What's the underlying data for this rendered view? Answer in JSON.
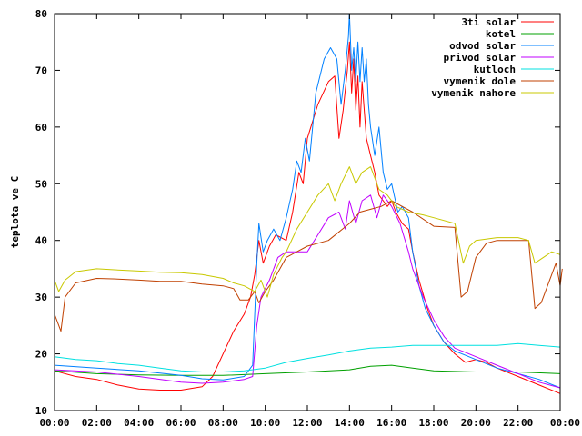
{
  "chart_data": {
    "type": "line",
    "title": "",
    "xlabel": "",
    "ylabel": "teplota ve C",
    "xlim": [
      "00:00",
      "24:00"
    ],
    "ylim": [
      10,
      80
    ],
    "grid": false,
    "legend_position": "top-right",
    "x_ticks": [
      "00:00",
      "02:00",
      "04:00",
      "06:00",
      "08:00",
      "10:00",
      "12:00",
      "14:00",
      "16:00",
      "18:00",
      "20:00",
      "22:00",
      "00:00"
    ],
    "y_ticks": [
      10,
      20,
      30,
      40,
      50,
      60,
      70,
      80
    ],
    "series": [
      {
        "name": "3ti solar",
        "color": "#ff0000",
        "points": [
          [
            0,
            17
          ],
          [
            1,
            16
          ],
          [
            2,
            15.5
          ],
          [
            3,
            14.5
          ],
          [
            4,
            13.8
          ],
          [
            5,
            13.6
          ],
          [
            6,
            13.6
          ],
          [
            7,
            14.2
          ],
          [
            7.5,
            16
          ],
          [
            8,
            20
          ],
          [
            8.5,
            24
          ],
          [
            9,
            27
          ],
          [
            9.3,
            30
          ],
          [
            9.5,
            34
          ],
          [
            9.7,
            40
          ],
          [
            9.9,
            36
          ],
          [
            10.2,
            39
          ],
          [
            10.5,
            41
          ],
          [
            11,
            40
          ],
          [
            11.3,
            45
          ],
          [
            11.6,
            52
          ],
          [
            11.8,
            50
          ],
          [
            12,
            58
          ],
          [
            12.5,
            64
          ],
          [
            13,
            68
          ],
          [
            13.3,
            69
          ],
          [
            13.5,
            58
          ],
          [
            13.7,
            63
          ],
          [
            13.9,
            70
          ],
          [
            14,
            75
          ],
          [
            14.1,
            66
          ],
          [
            14.2,
            72
          ],
          [
            14.3,
            63
          ],
          [
            14.4,
            69
          ],
          [
            14.5,
            60
          ],
          [
            14.6,
            68
          ],
          [
            14.8,
            58
          ],
          [
            15,
            55
          ],
          [
            15.2,
            52
          ],
          [
            15.4,
            48
          ],
          [
            15.6,
            47
          ],
          [
            15.8,
            46
          ],
          [
            16,
            47
          ],
          [
            16.2,
            45
          ],
          [
            16.5,
            43
          ],
          [
            16.8,
            42
          ],
          [
            17,
            38
          ],
          [
            17.3,
            33
          ],
          [
            17.7,
            28
          ],
          [
            18,
            25
          ],
          [
            18.5,
            22
          ],
          [
            19,
            20
          ],
          [
            19.5,
            18.5
          ],
          [
            20,
            19
          ],
          [
            20.5,
            18.5
          ],
          [
            21,
            17.5
          ],
          [
            22,
            16
          ],
          [
            23,
            14.5
          ],
          [
            24,
            13
          ]
        ]
      },
      {
        "name": "kotel",
        "color": "#00a000",
        "points": [
          [
            0,
            17
          ],
          [
            2,
            16.5
          ],
          [
            4,
            16.3
          ],
          [
            6,
            16.2
          ],
          [
            8,
            16.2
          ],
          [
            10,
            16.5
          ],
          [
            12,
            16.8
          ],
          [
            14,
            17.2
          ],
          [
            15,
            17.8
          ],
          [
            16,
            18
          ],
          [
            17,
            17.5
          ],
          [
            18,
            17
          ],
          [
            20,
            16.8
          ],
          [
            22,
            16.8
          ],
          [
            24,
            16.5
          ]
        ]
      },
      {
        "name": "odvod solar",
        "color": "#0080ff",
        "points": [
          [
            0,
            18
          ],
          [
            2,
            17.5
          ],
          [
            4,
            17
          ],
          [
            6,
            16.2
          ],
          [
            7,
            15.6
          ],
          [
            8,
            15.4
          ],
          [
            9,
            16
          ],
          [
            9.4,
            18
          ],
          [
            9.6,
            36
          ],
          [
            9.7,
            43
          ],
          [
            9.9,
            38
          ],
          [
            10.1,
            40
          ],
          [
            10.4,
            42
          ],
          [
            10.7,
            40
          ],
          [
            11,
            44
          ],
          [
            11.3,
            49
          ],
          [
            11.5,
            54
          ],
          [
            11.7,
            52
          ],
          [
            11.9,
            58
          ],
          [
            12.1,
            54
          ],
          [
            12.4,
            66
          ],
          [
            12.8,
            72
          ],
          [
            13.1,
            74
          ],
          [
            13.4,
            72
          ],
          [
            13.6,
            64
          ],
          [
            13.8,
            70
          ],
          [
            13.95,
            76
          ],
          [
            14,
            80
          ],
          [
            14.1,
            70
          ],
          [
            14.2,
            74
          ],
          [
            14.3,
            68
          ],
          [
            14.4,
            75
          ],
          [
            14.5,
            68
          ],
          [
            14.6,
            74
          ],
          [
            14.7,
            68
          ],
          [
            14.8,
            72
          ],
          [
            14.9,
            64
          ],
          [
            15,
            60
          ],
          [
            15.2,
            55
          ],
          [
            15.4,
            60
          ],
          [
            15.6,
            52
          ],
          [
            15.8,
            49
          ],
          [
            16,
            50
          ],
          [
            16.3,
            45
          ],
          [
            16.5,
            46
          ],
          [
            16.8,
            44
          ],
          [
            17,
            38
          ],
          [
            17.3,
            32
          ],
          [
            17.6,
            28
          ],
          [
            18,
            25
          ],
          [
            18.5,
            22
          ],
          [
            19,
            20.5
          ],
          [
            20,
            19
          ],
          [
            21,
            17.5
          ],
          [
            22,
            16.5
          ],
          [
            23,
            15.5
          ],
          [
            24,
            14
          ]
        ]
      },
      {
        "name": "privod solar",
        "color": "#c000ff",
        "points": [
          [
            0,
            17.2
          ],
          [
            2,
            16.8
          ],
          [
            4,
            16
          ],
          [
            6,
            15
          ],
          [
            7,
            14.8
          ],
          [
            8,
            15
          ],
          [
            9,
            15.5
          ],
          [
            9.4,
            16
          ],
          [
            9.6,
            25
          ],
          [
            9.8,
            30
          ],
          [
            10.2,
            33
          ],
          [
            10.6,
            37
          ],
          [
            11,
            38
          ],
          [
            11.5,
            38
          ],
          [
            12,
            38
          ],
          [
            12.5,
            41
          ],
          [
            13,
            44
          ],
          [
            13.5,
            45
          ],
          [
            13.8,
            42
          ],
          [
            14,
            47
          ],
          [
            14.3,
            43
          ],
          [
            14.6,
            47
          ],
          [
            15,
            48
          ],
          [
            15.3,
            44
          ],
          [
            15.6,
            48
          ],
          [
            16,
            46
          ],
          [
            16.4,
            43
          ],
          [
            16.8,
            38
          ],
          [
            17,
            35
          ],
          [
            17.5,
            30
          ],
          [
            18,
            26
          ],
          [
            18.5,
            23
          ],
          [
            19,
            21
          ],
          [
            20,
            19.5
          ],
          [
            21,
            18
          ],
          [
            22,
            16.5
          ],
          [
            23,
            15
          ],
          [
            24,
            14
          ]
        ]
      },
      {
        "name": "kutloch",
        "color": "#00e0e0",
        "points": [
          [
            0,
            19.5
          ],
          [
            1,
            19
          ],
          [
            2,
            18.8
          ],
          [
            3,
            18.3
          ],
          [
            4,
            18
          ],
          [
            5,
            17.5
          ],
          [
            6,
            17
          ],
          [
            7,
            16.8
          ],
          [
            8,
            16.8
          ],
          [
            9,
            17
          ],
          [
            10,
            17.5
          ],
          [
            11,
            18.5
          ],
          [
            12,
            19.2
          ],
          [
            13,
            19.8
          ],
          [
            14,
            20.5
          ],
          [
            15,
            21
          ],
          [
            16,
            21.2
          ],
          [
            17,
            21.5
          ],
          [
            18,
            21.5
          ],
          [
            19,
            21.5
          ],
          [
            20,
            21.5
          ],
          [
            21,
            21.5
          ],
          [
            22,
            21.8
          ],
          [
            23,
            21.5
          ],
          [
            24,
            21.2
          ]
        ]
      },
      {
        "name": "vymenik dole",
        "color": "#c04000",
        "points": [
          [
            0,
            27
          ],
          [
            0.3,
            24
          ],
          [
            0.5,
            30
          ],
          [
            1,
            32.5
          ],
          [
            2,
            33.3
          ],
          [
            3,
            33.2
          ],
          [
            4,
            33
          ],
          [
            5,
            32.8
          ],
          [
            6,
            32.8
          ],
          [
            7,
            32.3
          ],
          [
            8,
            32
          ],
          [
            8.5,
            31.5
          ],
          [
            8.8,
            29.5
          ],
          [
            9.2,
            29.5
          ],
          [
            9.5,
            31
          ],
          [
            9.7,
            29
          ],
          [
            10,
            31
          ],
          [
            10.4,
            33
          ],
          [
            11,
            37
          ],
          [
            11.5,
            38
          ],
          [
            12,
            39
          ],
          [
            13,
            40
          ],
          [
            13.5,
            41.5
          ],
          [
            14,
            43
          ],
          [
            14.5,
            45
          ],
          [
            15,
            45.5
          ],
          [
            15.5,
            46
          ],
          [
            16,
            47
          ],
          [
            16.5,
            46
          ],
          [
            17,
            45
          ],
          [
            18,
            42.5
          ],
          [
            19,
            42.3
          ],
          [
            19.3,
            30
          ],
          [
            19.6,
            31
          ],
          [
            20,
            37
          ],
          [
            20.5,
            39.5
          ],
          [
            21,
            40
          ],
          [
            22,
            40
          ],
          [
            22.5,
            40
          ],
          [
            22.8,
            28
          ],
          [
            23.1,
            29
          ],
          [
            23.4,
            32
          ],
          [
            23.8,
            36
          ],
          [
            24,
            32
          ],
          [
            24.1,
            35
          ]
        ]
      },
      {
        "name": "vymenik nahore",
        "color": "#c8c800",
        "points": [
          [
            0,
            33
          ],
          [
            0.2,
            31
          ],
          [
            0.5,
            33
          ],
          [
            1,
            34.5
          ],
          [
            2,
            35
          ],
          [
            3,
            34.8
          ],
          [
            4,
            34.6
          ],
          [
            5,
            34.4
          ],
          [
            6,
            34.3
          ],
          [
            7,
            34
          ],
          [
            8,
            33.3
          ],
          [
            8.5,
            32.5
          ],
          [
            9,
            32
          ],
          [
            9.5,
            31
          ],
          [
            9.8,
            33
          ],
          [
            10.1,
            30
          ],
          [
            10.4,
            34
          ],
          [
            10.8,
            37
          ],
          [
            11,
            38
          ],
          [
            11.5,
            42
          ],
          [
            12,
            45
          ],
          [
            12.5,
            48
          ],
          [
            13,
            50
          ],
          [
            13.3,
            47
          ],
          [
            13.6,
            50
          ],
          [
            14,
            53
          ],
          [
            14.3,
            50
          ],
          [
            14.6,
            52
          ],
          [
            15,
            53
          ],
          [
            15.4,
            49
          ],
          [
            15.8,
            48
          ],
          [
            16.2,
            46
          ],
          [
            16.8,
            45
          ],
          [
            17.5,
            44.5
          ],
          [
            18,
            44
          ],
          [
            19,
            43
          ],
          [
            19.4,
            36
          ],
          [
            19.7,
            39
          ],
          [
            20,
            40
          ],
          [
            21,
            40.5
          ],
          [
            22,
            40.5
          ],
          [
            22.5,
            40
          ],
          [
            22.8,
            36
          ],
          [
            23.2,
            37
          ],
          [
            23.6,
            38
          ],
          [
            24,
            37.5
          ]
        ]
      }
    ]
  }
}
